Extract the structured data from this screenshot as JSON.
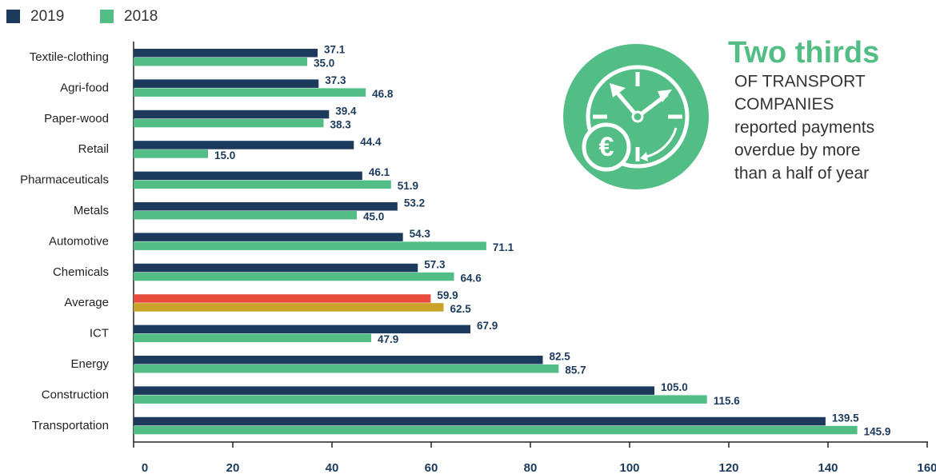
{
  "chart_data": {
    "type": "hbar",
    "categories": [
      "Textile-clothing",
      "Agri-food",
      "Paper-wood",
      "Retail",
      "Pharmaceuticals",
      "Metals",
      "Automotive",
      "Chemicals",
      "Average",
      "ICT",
      "Energy",
      "Construction",
      "Transportation"
    ],
    "series": [
      {
        "name": "2019",
        "color": "#1b3a5c",
        "colors": [
          "#1b3a5c",
          "#1b3a5c",
          "#1b3a5c",
          "#1b3a5c",
          "#1b3a5c",
          "#1b3a5c",
          "#1b3a5c",
          "#1b3a5c",
          "#e84c3d",
          "#1b3a5c",
          "#1b3a5c",
          "#1b3a5c",
          "#1b3a5c"
        ],
        "values": [
          37.1,
          37.3,
          39.4,
          44.4,
          46.1,
          53.2,
          54.3,
          57.3,
          59.9,
          67.9,
          82.5,
          105.0,
          139.5
        ],
        "value_labels": [
          "37.1",
          "37.3",
          "39.4",
          "44.4",
          "46.1",
          "53.2",
          "54.3",
          "57.3",
          "59.9",
          "67.9",
          "82.5",
          "105.0",
          "139.5"
        ]
      },
      {
        "name": "2018",
        "color": "#52bd84",
        "colors": [
          "#52bd84",
          "#52bd84",
          "#52bd84",
          "#52bd84",
          "#52bd84",
          "#52bd84",
          "#52bd84",
          "#52bd84",
          "#c9a227",
          "#52bd84",
          "#52bd84",
          "#52bd84",
          "#52bd84"
        ],
        "values": [
          35.0,
          46.8,
          38.3,
          15.0,
          51.9,
          45.0,
          71.1,
          64.6,
          62.5,
          47.9,
          85.7,
          115.6,
          145.9
        ],
        "value_labels": [
          "35.0",
          "46.8",
          "38.3",
          "15.0",
          "51.9",
          "45.0",
          "71.1",
          "64.6",
          "62.5",
          "47.9",
          "85.7",
          "115.6",
          "145.9"
        ]
      }
    ],
    "xlim": [
      0,
      160
    ],
    "xticks": [
      0,
      20,
      40,
      60,
      80,
      100,
      120,
      140,
      160
    ],
    "legend": "top-left",
    "annotation": {
      "headline": "Two thirds",
      "lines": [
        "OF TRANSPORT",
        "COMPANIES",
        "reported payments",
        "overdue by more",
        "than a half of year"
      ]
    }
  }
}
